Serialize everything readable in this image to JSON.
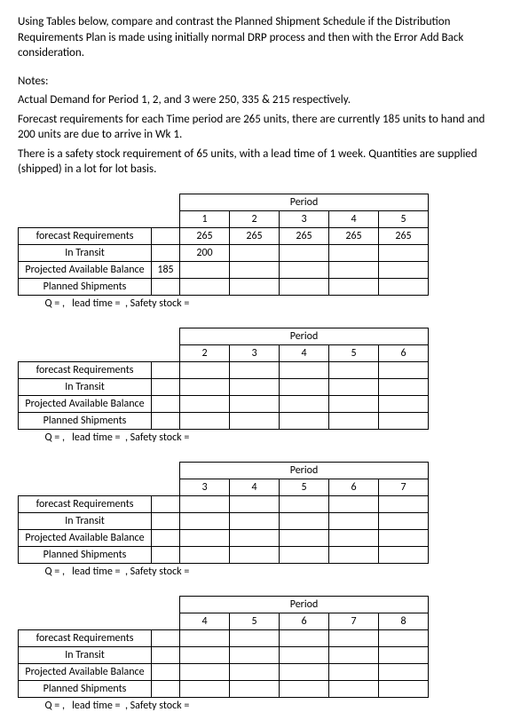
{
  "intro": {
    "para1": "Using Tables below, compare and contrast the Planned Shipment Schedule if the Distribution Requirements Plan is made using initially normal DRP process and then with the Error Add Back consideration.",
    "notes_label": "Notes:",
    "line1": "Actual Demand for Period 1, 2, and 3 were 250, 335 & 215 respectively.",
    "line2": "Forecast requirements for each Time period are 265 units, there are currently 185 units to hand and 200 units are due to arrive in Wk 1.",
    "line3": "There is a safety stock requirement of 65 units, with a lead time of 1 week. Quantities are supplied (shipped) in a lot for lot basis."
  },
  "labels": {
    "period": "Period",
    "forecast": "forecast Requirements",
    "intransit": "In Transit",
    "pab": "Projected Available Balance",
    "planned": "Planned Shipments",
    "footer": "Q = ,   lead time =  , Safety stock ="
  },
  "tables": [
    {
      "periods": [
        "1",
        "2",
        "3",
        "4",
        "5"
      ],
      "forecast": [
        "265",
        "265",
        "265",
        "265",
        "265"
      ],
      "intransit": [
        "200",
        "",
        "",
        "",
        ""
      ],
      "pab_initial": "185",
      "pab": [
        "",
        "",
        "",
        "",
        ""
      ],
      "planned": [
        "",
        "",
        "",
        "",
        ""
      ]
    },
    {
      "periods": [
        "2",
        "3",
        "4",
        "5",
        "6"
      ],
      "forecast": [
        "",
        "",
        "",
        "",
        ""
      ],
      "intransit": [
        "",
        "",
        "",
        "",
        ""
      ],
      "pab_initial": "",
      "pab": [
        "",
        "",
        "",
        "",
        ""
      ],
      "planned": [
        "",
        "",
        "",
        "",
        ""
      ]
    },
    {
      "periods": [
        "3",
        "4",
        "5",
        "6",
        "7"
      ],
      "forecast": [
        "",
        "",
        "",
        "",
        ""
      ],
      "intransit": [
        "",
        "",
        "",
        "",
        ""
      ],
      "pab_initial": "",
      "pab": [
        "",
        "",
        "",
        "",
        ""
      ],
      "planned": [
        "",
        "",
        "",
        "",
        ""
      ]
    },
    {
      "periods": [
        "4",
        "5",
        "6",
        "7",
        "8"
      ],
      "forecast": [
        "",
        "",
        "",
        "",
        ""
      ],
      "intransit": [
        "",
        "",
        "",
        "",
        ""
      ],
      "pab_initial": "",
      "pab": [
        "",
        "",
        "",
        "",
        ""
      ],
      "planned": [
        "",
        "",
        "",
        "",
        ""
      ]
    }
  ]
}
